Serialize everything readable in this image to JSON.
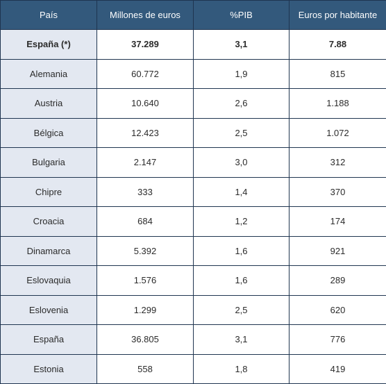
{
  "table": {
    "header": [
      "País",
      "Millones de euros",
      "%PIB",
      "Euros por habitante"
    ],
    "rows": [
      [
        "España (*)",
        "37.289",
        "3,1",
        "7.88"
      ],
      [
        "Alemania",
        "60.772",
        "1,9",
        "815"
      ],
      [
        "Austria",
        "10.640",
        "2,6",
        "1.188"
      ],
      [
        "Bélgica",
        "12.423",
        "2,5",
        "1.072"
      ],
      [
        "Bulgaria",
        "2.147",
        "3,0",
        "312"
      ],
      [
        "Chipre",
        "333",
        "1,4",
        "370"
      ],
      [
        "Croacia",
        "684",
        "1,2",
        "174"
      ],
      [
        "Dinamarca",
        "5.392",
        "1,6",
        "921"
      ],
      [
        "Eslovaquia",
        "1.576",
        "1,6",
        "289"
      ],
      [
        "Eslovenia",
        "1.299",
        "2,5",
        "620"
      ],
      [
        "España",
        "36.805",
        "3,1",
        "776"
      ],
      [
        "Estonia",
        "558",
        "1,8",
        "419"
      ]
    ]
  }
}
